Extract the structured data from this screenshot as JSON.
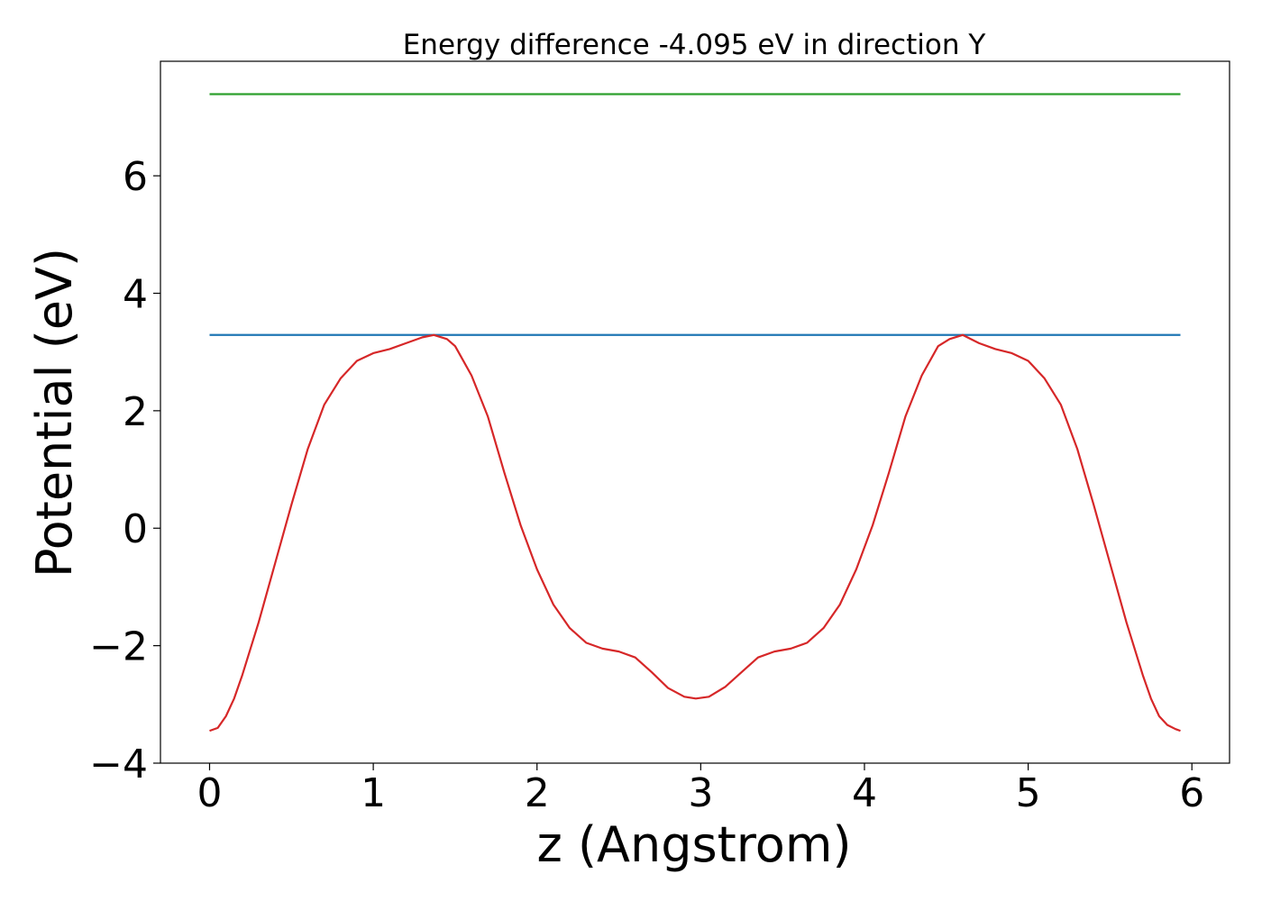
{
  "chart_data": {
    "type": "line",
    "title": "Energy difference -4.095 eV in direction Y",
    "xlabel": "z (Angstrom)",
    "ylabel": "Potential (eV)",
    "xlim": [
      -0.3,
      6.23
    ],
    "ylim": [
      -4.0,
      7.95
    ],
    "xticks": [
      0,
      1,
      2,
      3,
      4,
      5,
      6
    ],
    "xtick_labels": [
      "0",
      "1",
      "2",
      "3",
      "4",
      "5",
      "6"
    ],
    "yticks": [
      -4,
      -2,
      0,
      2,
      4,
      6
    ],
    "ytick_labels": [
      "−4",
      "−2",
      "0",
      "2",
      "4",
      "6"
    ],
    "grid": false,
    "series": [
      {
        "color": "#2ca02c",
        "x": [
          0,
          5.93
        ],
        "y": [
          7.39,
          7.39
        ]
      },
      {
        "color": "#1f77b4",
        "x": [
          0,
          5.93
        ],
        "y": [
          3.29,
          3.29
        ]
      },
      {
        "color": "#d62728",
        "x": [
          0,
          0.05,
          0.1,
          0.15,
          0.2,
          0.3,
          0.4,
          0.5,
          0.6,
          0.7,
          0.8,
          0.9,
          1.0,
          1.1,
          1.2,
          1.3,
          1.37,
          1.45,
          1.5,
          1.6,
          1.7,
          1.8,
          1.9,
          2.0,
          2.1,
          2.2,
          2.3,
          2.4,
          2.5,
          2.6,
          2.7,
          2.8,
          2.9,
          2.97,
          3.05,
          3.15,
          3.25,
          3.35,
          3.45,
          3.55,
          3.65,
          3.75,
          3.85,
          3.95,
          4.05,
          4.15,
          4.25,
          4.35,
          4.45,
          4.52,
          4.6,
          4.7,
          4.8,
          4.9,
          5.0,
          5.1,
          5.2,
          5.3,
          5.4,
          5.5,
          5.6,
          5.7,
          5.75,
          5.8,
          5.85,
          5.9,
          5.93
        ],
        "y": [
          -3.45,
          -3.4,
          -3.2,
          -2.9,
          -2.5,
          -1.6,
          -0.6,
          0.4,
          1.35,
          2.1,
          2.55,
          2.85,
          2.98,
          3.05,
          3.15,
          3.25,
          3.29,
          3.22,
          3.1,
          2.6,
          1.9,
          0.95,
          0.05,
          -0.7,
          -1.3,
          -1.7,
          -1.95,
          -2.05,
          -2.1,
          -2.2,
          -2.45,
          -2.72,
          -2.87,
          -2.9,
          -2.87,
          -2.7,
          -2.45,
          -2.2,
          -2.1,
          -2.05,
          -1.95,
          -1.7,
          -1.3,
          -0.7,
          0.05,
          0.95,
          1.9,
          2.6,
          3.1,
          3.22,
          3.29,
          3.15,
          3.05,
          2.98,
          2.85,
          2.55,
          2.1,
          1.35,
          0.4,
          -0.6,
          -1.6,
          -2.5,
          -2.9,
          -3.2,
          -3.35,
          -3.42,
          -3.45
        ]
      }
    ]
  }
}
